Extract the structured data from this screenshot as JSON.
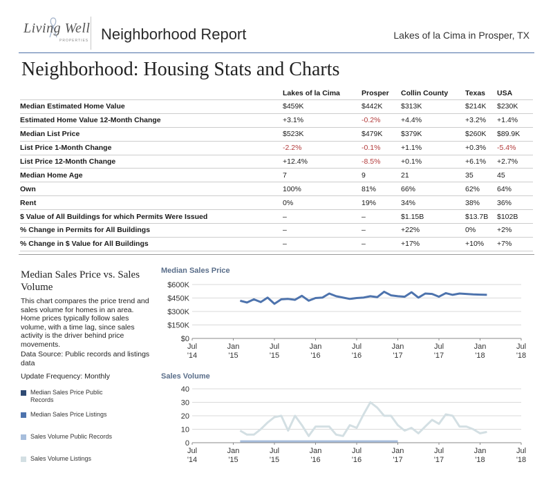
{
  "header": {
    "logo_text": "Living Well",
    "logo_subtext": "PROPERTIES",
    "title": "Neighborhood Report",
    "location": "Lakes of la Cima in Prosper, TX"
  },
  "section_title": "Neighborhood: Housing Stats and Charts",
  "stats_table": {
    "columns": [
      "Lakes of la Cima",
      "Prosper",
      "Collin County",
      "Texas",
      "USA"
    ],
    "rows": [
      {
        "label": "Median Estimated Home Value",
        "values": [
          "$459K",
          "$442K",
          "$313K",
          "$214K",
          "$230K"
        ]
      },
      {
        "label": "Estimated Home Value 12-Month Change",
        "values": [
          "+3.1%",
          "-0.2%",
          "+4.4%",
          "+3.2%",
          "+1.4%"
        ]
      },
      {
        "label": "Median List Price",
        "values": [
          "$523K",
          "$479K",
          "$379K",
          "$260K",
          "$89.9K"
        ]
      },
      {
        "label": "List Price 1-Month Change",
        "values": [
          "-2.2%",
          "-0.1%",
          "+1.1%",
          "+0.3%",
          "-5.4%"
        ]
      },
      {
        "label": "List Price 12-Month Change",
        "values": [
          "+12.4%",
          "-8.5%",
          "+0.1%",
          "+6.1%",
          "+2.7%"
        ]
      },
      {
        "label": "Median Home Age",
        "values": [
          "7",
          "9",
          "21",
          "35",
          "45"
        ]
      },
      {
        "label": "Own",
        "values": [
          "100%",
          "81%",
          "66%",
          "62%",
          "64%"
        ]
      },
      {
        "label": "Rent",
        "values": [
          "0%",
          "19%",
          "34%",
          "38%",
          "36%"
        ]
      },
      {
        "label": "$ Value of All Buildings for which Permits Were Issued",
        "values": [
          "–",
          "–",
          "$1.15B",
          "$13.7B",
          "$102B"
        ]
      },
      {
        "label": "% Change in Permits for All Buildings",
        "values": [
          "–",
          "–",
          "+22%",
          "0%",
          "+2%"
        ]
      },
      {
        "label": "% Change in $ Value for All Buildings",
        "values": [
          "–",
          "–",
          "+17%",
          "+10%",
          "+7%"
        ]
      }
    ]
  },
  "chart_section": {
    "heading": "Median Sales Price vs. Sales Volume",
    "description": "This chart compares the price trend and sales volume for homes in an area. Home prices typically follow sales volume, with a time lag, since sales activity is the driver behind price movements.",
    "source": "Data Source: Public records and listings data",
    "frequency": "Update Frequency: Monthly",
    "legend": [
      {
        "label": "Median Sales Price Public Records",
        "color": "#2f4a73"
      },
      {
        "label": "Median Sales Price Listings",
        "color": "#4d73ad"
      },
      {
        "label": "Sales Volume Public Records",
        "color": "#a7bedc"
      },
      {
        "label": "Sales Volume Listings",
        "color": "#d3dfe3"
      }
    ]
  },
  "chart_data": [
    {
      "type": "line",
      "title": "Median Sales Price",
      "x_ticks": [
        [
          "Jul",
          "'14"
        ],
        [
          "Jan",
          "'15"
        ],
        [
          "Jul",
          "'15"
        ],
        [
          "Jan",
          "'16"
        ],
        [
          "Jul",
          "'16"
        ],
        [
          "Jan",
          "'17"
        ],
        [
          "Jul",
          "'17"
        ],
        [
          "Jan",
          "'18"
        ],
        [
          "Jul",
          "'18"
        ]
      ],
      "y_ticks": [
        "$0",
        "$150K",
        "$300K",
        "$450K",
        "$600K"
      ],
      "ylim": [
        0,
        600
      ],
      "series": [
        {
          "name": "Median Sales Price Listings",
          "color": "#4d73ad",
          "x": [
            7,
            8,
            9,
            10,
            11,
            12,
            13,
            14,
            15,
            16,
            17,
            18,
            19,
            20,
            21,
            22,
            23,
            24,
            25,
            26,
            27,
            28,
            29,
            30,
            31,
            32,
            33,
            34,
            35,
            36,
            37,
            38,
            39,
            40,
            41,
            42,
            43
          ],
          "values": [
            420,
            400,
            435,
            405,
            455,
            385,
            435,
            440,
            430,
            475,
            420,
            450,
            455,
            500,
            470,
            455,
            440,
            450,
            455,
            470,
            460,
            520,
            480,
            470,
            465,
            515,
            455,
            500,
            495,
            465,
            505,
            485,
            500,
            495,
            490,
            488,
            485
          ]
        }
      ]
    },
    {
      "type": "line",
      "title": "Sales Volume",
      "x_ticks": [
        [
          "Jul",
          "'14"
        ],
        [
          "Jan",
          "'15"
        ],
        [
          "Jul",
          "'15"
        ],
        [
          "Jan",
          "'16"
        ],
        [
          "Jul",
          "'16"
        ],
        [
          "Jan",
          "'17"
        ],
        [
          "Jul",
          "'17"
        ],
        [
          "Jan",
          "'18"
        ],
        [
          "Jul",
          "'18"
        ]
      ],
      "y_ticks": [
        "0",
        "10",
        "20",
        "30",
        "40"
      ],
      "ylim": [
        0,
        40
      ],
      "series": [
        {
          "name": "Sales Volume Listings",
          "color": "#d3dfe3",
          "x": [
            7,
            8,
            9,
            10,
            11,
            12,
            13,
            14,
            15,
            16,
            17,
            18,
            19,
            20,
            21,
            22,
            23,
            24,
            25,
            26,
            27,
            28,
            29,
            30,
            31,
            32,
            33,
            34,
            35,
            36,
            37,
            38,
            39,
            40,
            41,
            42,
            43
          ],
          "values": [
            9,
            6,
            6,
            10,
            15,
            19,
            20,
            9,
            20,
            13,
            5,
            12,
            12,
            12,
            6,
            5,
            13,
            11,
            21,
            30,
            26,
            20,
            20,
            13,
            9,
            11,
            7,
            12,
            17,
            14,
            21,
            20,
            12,
            12,
            10,
            7,
            8
          ]
        },
        {
          "name": "Sales Volume Public Records",
          "color": "#a7bedc",
          "x": [
            7,
            10,
            12,
            15,
            18,
            21,
            24,
            27,
            30
          ],
          "values": [
            1,
            1,
            1,
            1,
            1,
            1,
            1,
            1,
            1
          ]
        }
      ]
    }
  ]
}
